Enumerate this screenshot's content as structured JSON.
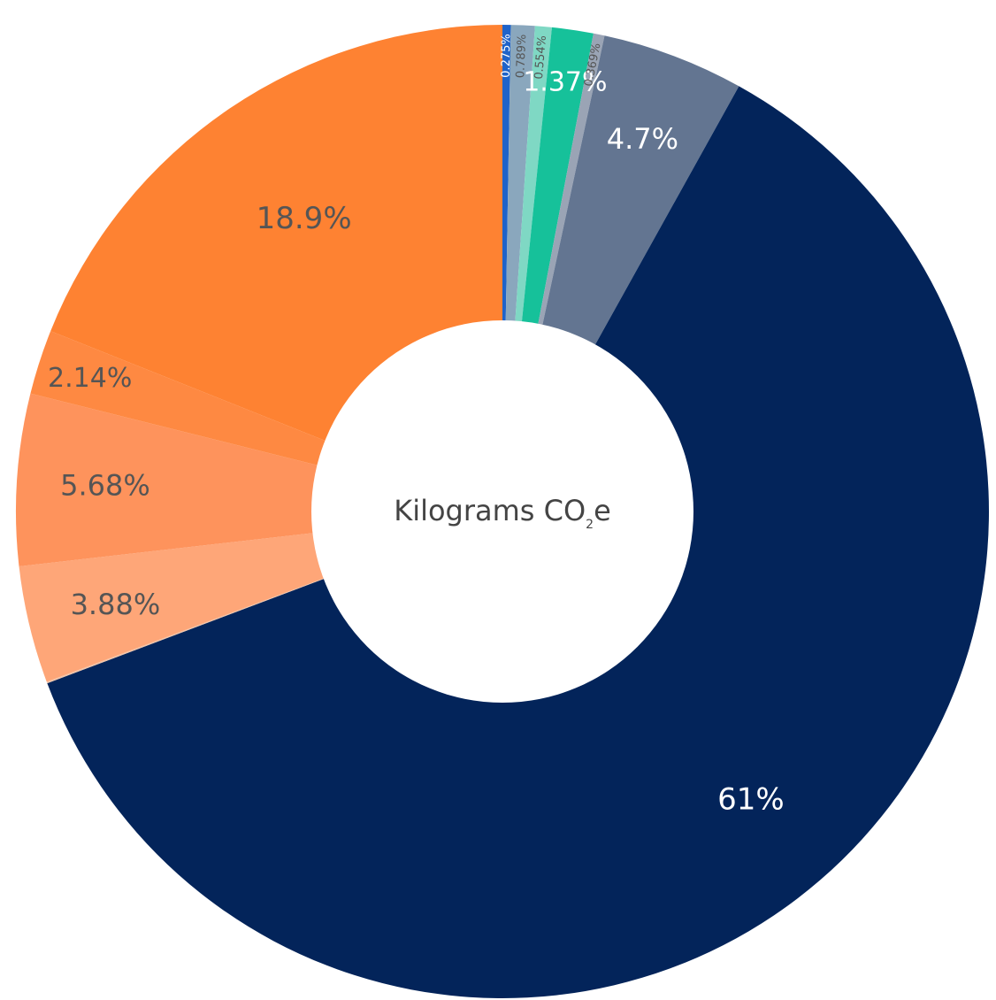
{
  "chart_data": {
    "type": "pie",
    "donut": true,
    "center_label": {
      "main": "Kilograms CO",
      "sub": "2",
      "tail": "e"
    },
    "start_angle_deg": 0,
    "direction": "clockwise",
    "slices": [
      {
        "value": 0.275,
        "label": "0.275%",
        "color": "#1f63c9",
        "text_color": "#ffffff"
      },
      {
        "value": 0.789,
        "label": "0.789%",
        "color": "#8aa7bd",
        "text_color": "#555555"
      },
      {
        "value": 0.554,
        "label": "0.554%",
        "color": "#7fd8c4",
        "text_color": "#555555"
      },
      {
        "value": 1.37,
        "label": "1.37%",
        "color": "#16c19a",
        "text_color": "#ffffff"
      },
      {
        "value": 0.369,
        "label": "0.369%",
        "color": "#9aa4b5",
        "text_color": "#555555"
      },
      {
        "value": 4.7,
        "label": "4.7%",
        "color": "#637591",
        "text_color": "#ffffff"
      },
      {
        "value": 61,
        "label": "61%",
        "color": "#03245a",
        "text_color": "#ffffff"
      },
      {
        "value": 0.05,
        "label": "",
        "color": "#f2c4a8",
        "text_color": "#555555"
      },
      {
        "value": 3.88,
        "label": "3.88%",
        "color": "#fea678",
        "text_color": "#555555"
      },
      {
        "value": 5.68,
        "label": "5.68%",
        "color": "#fe935c",
        "text_color": "#555555"
      },
      {
        "value": 2.14,
        "label": "2.14%",
        "color": "#fe8942",
        "text_color": "#555555"
      },
      {
        "value": 18.9,
        "label": "18.9%",
        "color": "#fe8232",
        "text_color": "#555555"
      }
    ]
  }
}
